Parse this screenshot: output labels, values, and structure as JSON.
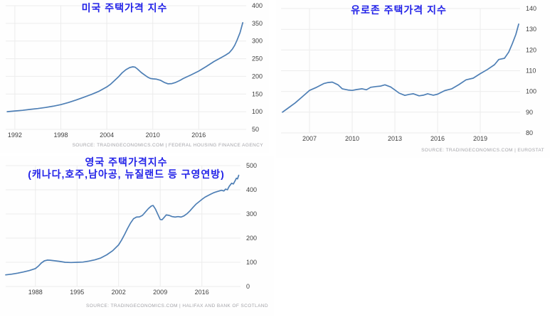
{
  "style": {
    "title_color": "#2222e8",
    "line_color": "#4e7fb5",
    "grid_color": "#ececec",
    "label_color": "#404040",
    "source_color": "#a3a3a8",
    "background": "#ffffff"
  },
  "chart_data": [
    {
      "type": "line",
      "title": "미국 주택가격 지수",
      "source": "SOURCE: TRADINGECONOMICS.COM | FEDERAL HOUSING FINANCE AGENCY",
      "xlabel": "",
      "ylabel": "",
      "legend": "none",
      "grid": true,
      "line_color": "#4e7fb5",
      "xlim": [
        1990.8,
        2022.2
      ],
      "ylim": [
        50,
        400
      ],
      "xticks": [
        1992,
        1998,
        2004,
        2010,
        2016
      ],
      "yticks": [
        400,
        350,
        300,
        250,
        200,
        150,
        100,
        50
      ],
      "x": [
        1991,
        1992,
        1993,
        1994,
        1995,
        1996,
        1997,
        1998,
        1999,
        2000,
        2001,
        2002,
        2003,
        2004,
        2004.5,
        2005,
        2005.5,
        2006,
        2006.5,
        2007,
        2007.4,
        2007.7,
        2008,
        2008.5,
        2009,
        2009.4,
        2009.7,
        2010,
        2010.5,
        2011,
        2011.5,
        2012,
        2012.5,
        2013,
        2013.5,
        2014,
        2015,
        2016,
        2017,
        2018,
        2019,
        2019.5,
        2020,
        2020.4,
        2020.7,
        2021,
        2021.4,
        2021.75
      ],
      "y": [
        100,
        102,
        104,
        106.5,
        109,
        112,
        115.5,
        120,
        126,
        133,
        141,
        149,
        158,
        170,
        178,
        188,
        198,
        210,
        219,
        225,
        227,
        226,
        221,
        211,
        203,
        197,
        194,
        193,
        192,
        189,
        183,
        179,
        179.5,
        183,
        188,
        194,
        204,
        215,
        228,
        242,
        254,
        260,
        267,
        277,
        288,
        302,
        324,
        352
      ]
    },
    {
      "type": "line",
      "title": "유로존 주택가격 지수",
      "source": "SOURCE: TRADINGECONOMICS.COM | EUROSTAT",
      "xlabel": "",
      "ylabel": "",
      "legend": "none",
      "grid": true,
      "line_color": "#4e7fb5",
      "xlim": [
        2005.0,
        2021.8
      ],
      "ylim": [
        80,
        140
      ],
      "xticks": [
        2007,
        2010,
        2013,
        2016,
        2019
      ],
      "yticks": [
        140,
        130,
        120,
        110,
        100,
        90,
        80
      ],
      "x": [
        2005.1,
        2005.5,
        2006,
        2006.5,
        2007,
        2007.5,
        2008,
        2008.3,
        2008.6,
        2009,
        2009.3,
        2009.7,
        2010,
        2010.3,
        2010.7,
        2011,
        2011.3,
        2011.7,
        2012,
        2012.3,
        2012.7,
        2013,
        2013.3,
        2013.7,
        2014,
        2014.3,
        2014.7,
        2015,
        2015.3,
        2015.7,
        2016,
        2016.5,
        2017,
        2017.5,
        2018,
        2018.5,
        2019,
        2019.5,
        2020,
        2020.3,
        2020.7,
        2021,
        2021.25,
        2021.5,
        2021.7
      ],
      "y": [
        90,
        92,
        94.5,
        97.5,
        100.5,
        102,
        103.8,
        104.3,
        104.5,
        103.2,
        101.3,
        100.7,
        100.5,
        100.9,
        101.3,
        100.8,
        102,
        102.4,
        102.6,
        103.2,
        102.2,
        100.7,
        99.2,
        98.1,
        98.6,
        98.9,
        97.9,
        98.2,
        98.9,
        98.2,
        98.7,
        100.4,
        101.3,
        103.3,
        105.6,
        106.4,
        108.6,
        110.6,
        112.9,
        115.4,
        116,
        119,
        123,
        127.5,
        132.5
      ]
    },
    {
      "type": "line",
      "title": "영국 주택가격지수",
      "subtitle": "(캐나다,호주,남아공, 뉴질랜드 등 구영연방)",
      "source": "SOURCE: TRADINGECONOMICS.COM | HALIFAX AND BANK OF SCOTLAND",
      "xlabel": "",
      "ylabel": "",
      "legend": "none",
      "grid": true,
      "line_color": "#4e7fb5",
      "xlim": [
        1983,
        2022.5
      ],
      "ylim": [
        0,
        500
      ],
      "xticks": [
        1988,
        1995,
        2002,
        2009,
        2016
      ],
      "yticks": [
        500,
        400,
        300,
        200,
        100,
        0
      ],
      "x": [
        1983,
        1984,
        1985,
        1986,
        1987,
        1988,
        1988.5,
        1989,
        1989.5,
        1990,
        1990.5,
        1991,
        1992,
        1993,
        1994,
        1995,
        1996,
        1997,
        1998,
        1999,
        2000,
        2001,
        2002,
        2002.5,
        2003,
        2003.5,
        2004,
        2004.5,
        2005,
        2005.5,
        2006,
        2006.5,
        2007,
        2007.5,
        2007.8,
        2008.2,
        2008.6,
        2009,
        2009.3,
        2009.6,
        2010,
        2010.5,
        2011,
        2011.5,
        2012,
        2012.5,
        2013,
        2013.5,
        2014,
        2014.5,
        2015,
        2015.5,
        2016,
        2016.5,
        2017,
        2017.5,
        2018,
        2018.5,
        2019,
        2019.3,
        2019.7,
        2020,
        2020.3,
        2020.6,
        2021,
        2021.3,
        2021.6,
        2021.8,
        2022,
        2022.2
      ],
      "y": [
        48,
        51,
        55,
        60,
        66,
        74,
        84,
        97,
        106,
        109,
        108.5,
        107,
        104,
        100,
        99,
        100,
        101,
        105,
        110,
        118,
        131,
        148,
        172,
        192,
        215,
        240,
        262,
        280,
        287,
        288,
        294,
        308,
        322,
        333,
        335,
        320,
        298,
        277,
        276,
        284,
        296,
        294,
        289,
        287,
        289,
        287,
        292,
        301,
        313,
        327,
        340,
        350,
        360,
        369,
        376,
        382,
        388,
        392,
        396,
        398,
        395,
        403,
        400,
        414,
        427,
        424,
        438,
        448,
        445,
        460
      ]
    }
  ]
}
